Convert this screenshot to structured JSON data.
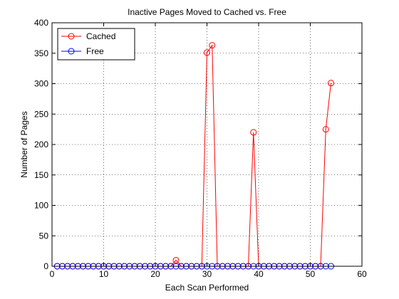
{
  "chart_data": {
    "type": "line",
    "title": "Inactive Pages Moved to Cached vs. Free",
    "xlabel": "Each Scan Performed",
    "ylabel": "Number of Pages",
    "xlim": [
      0,
      60
    ],
    "ylim": [
      0,
      400
    ],
    "xticks": [
      0,
      10,
      20,
      30,
      40,
      50,
      60
    ],
    "yticks": [
      0,
      50,
      100,
      150,
      200,
      250,
      300,
      350,
      400
    ],
    "grid": true,
    "legend_position": "top-left",
    "series": [
      {
        "name": "Cached",
        "color": "#ff0000",
        "marker": "circle",
        "x": [
          1,
          2,
          3,
          4,
          5,
          6,
          7,
          8,
          9,
          10,
          11,
          12,
          13,
          14,
          15,
          16,
          17,
          18,
          19,
          20,
          21,
          22,
          23,
          24,
          25,
          26,
          27,
          28,
          29,
          30,
          31,
          32,
          33,
          34,
          35,
          36,
          37,
          38,
          39,
          40,
          41,
          42,
          43,
          44,
          45,
          46,
          47,
          48,
          49,
          50,
          51,
          52,
          53,
          54
        ],
        "values": [
          0,
          0,
          0,
          0,
          0,
          0,
          0,
          0,
          0,
          0,
          0,
          0,
          0,
          0,
          0,
          0,
          0,
          0,
          0,
          0,
          0,
          0,
          0,
          10,
          0,
          0,
          0,
          0,
          0,
          351,
          363,
          0,
          0,
          0,
          0,
          0,
          0,
          0,
          220,
          0,
          0,
          0,
          0,
          0,
          0,
          0,
          0,
          0,
          0,
          0,
          0,
          0,
          225,
          301
        ]
      },
      {
        "name": "Free",
        "color": "#0000ff",
        "marker": "circle",
        "x": [
          1,
          2,
          3,
          4,
          5,
          6,
          7,
          8,
          9,
          10,
          11,
          12,
          13,
          14,
          15,
          16,
          17,
          18,
          19,
          20,
          21,
          22,
          23,
          24,
          25,
          26,
          27,
          28,
          29,
          30,
          31,
          32,
          33,
          34,
          35,
          36,
          37,
          38,
          39,
          40,
          41,
          42,
          43,
          44,
          45,
          46,
          47,
          48,
          49,
          50,
          51,
          52,
          53,
          54
        ],
        "values": [
          0,
          0,
          0,
          0,
          0,
          0,
          0,
          0,
          0,
          0,
          0,
          0,
          0,
          0,
          0,
          0,
          0,
          0,
          0,
          0,
          0,
          0,
          0,
          0,
          0,
          0,
          0,
          0,
          0,
          0,
          0,
          0,
          0,
          0,
          0,
          0,
          0,
          0,
          0,
          0,
          0,
          0,
          0,
          0,
          0,
          0,
          0,
          0,
          0,
          0,
          0,
          0,
          0,
          0
        ]
      }
    ]
  }
}
